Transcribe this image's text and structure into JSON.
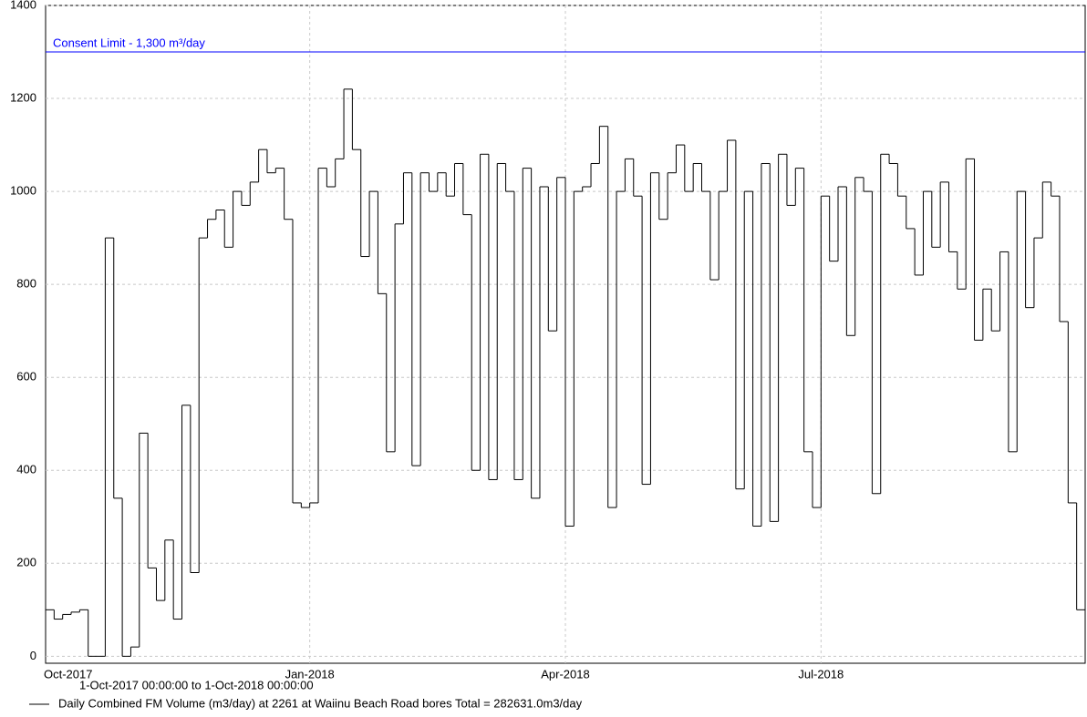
{
  "chart_data": {
    "type": "step",
    "x": [
      "Oct-2017",
      null,
      null,
      null,
      null,
      null,
      null,
      null,
      null,
      null,
      null,
      null,
      null,
      null,
      null,
      null,
      null,
      null,
      null,
      null,
      null,
      null,
      null,
      null,
      null,
      null,
      null,
      null,
      null,
      null,
      null,
      "Jan-2018",
      null,
      null,
      null,
      null,
      null,
      null,
      null,
      null,
      null,
      null,
      null,
      null,
      null,
      null,
      null,
      null,
      null,
      null,
      null,
      null,
      null,
      null,
      null,
      null,
      null,
      null,
      null,
      null,
      null,
      "Apr-2018",
      null,
      null,
      null,
      null,
      null,
      null,
      null,
      null,
      null,
      null,
      null,
      null,
      null,
      null,
      null,
      null,
      null,
      null,
      null,
      null,
      null,
      null,
      null,
      null,
      null,
      null,
      null,
      null,
      null,
      "Jul-2018",
      null,
      null,
      null,
      null,
      null,
      null,
      null,
      null,
      null,
      null,
      null,
      null,
      null,
      null,
      null,
      null,
      null,
      null,
      null,
      null,
      null,
      null,
      null,
      null,
      null,
      null,
      null,
      null,
      null,
      null
    ],
    "series": [
      {
        "name": "Daily Combined FM Volume (m3/day) at 2261 at Waiinu Beach Road bores    Total = 282631.0m3/day",
        "color": "#000000",
        "values": [
          100,
          80,
          90,
          95,
          100,
          0,
          0,
          900,
          340,
          0,
          20,
          480,
          190,
          120,
          250,
          80,
          540,
          180,
          900,
          940,
          960,
          880,
          1000,
          970,
          1020,
          1090,
          1040,
          1050,
          940,
          330,
          320,
          330,
          1050,
          1010,
          1070,
          1220,
          1090,
          860,
          1000,
          780,
          440,
          930,
          1040,
          410,
          1040,
          1000,
          1040,
          990,
          1060,
          950,
          400,
          1080,
          380,
          1060,
          1000,
          380,
          1050,
          340,
          1010,
          700,
          1030,
          280,
          1000,
          1010,
          1060,
          1140,
          320,
          1000,
          1070,
          990,
          370,
          1040,
          940,
          1040,
          1100,
          1000,
          1060,
          1000,
          810,
          1000,
          1110,
          360,
          1000,
          280,
          1060,
          290,
          1080,
          970,
          1050,
          440,
          320,
          990,
          850,
          1010,
          690,
          1030,
          1000,
          350,
          1080,
          1060,
          990,
          920,
          820,
          1000,
          880,
          1020,
          870,
          790,
          1070,
          680,
          790,
          700,
          870,
          440,
          1000,
          750,
          900,
          1020,
          990,
          720,
          330,
          100
        ]
      }
    ],
    "ylim": [
      -15,
      1400
    ],
    "yticks": [
      0,
      200,
      400,
      600,
      800,
      1000,
      1200,
      1400
    ],
    "grid": true,
    "limit_line": {
      "value": 1300,
      "label": "Consent Limit - 1,300 m³/day",
      "color": "#0000ff"
    },
    "period": "1-Oct-2017 00:00:00 to  1-Oct-2018 00:00:00"
  }
}
